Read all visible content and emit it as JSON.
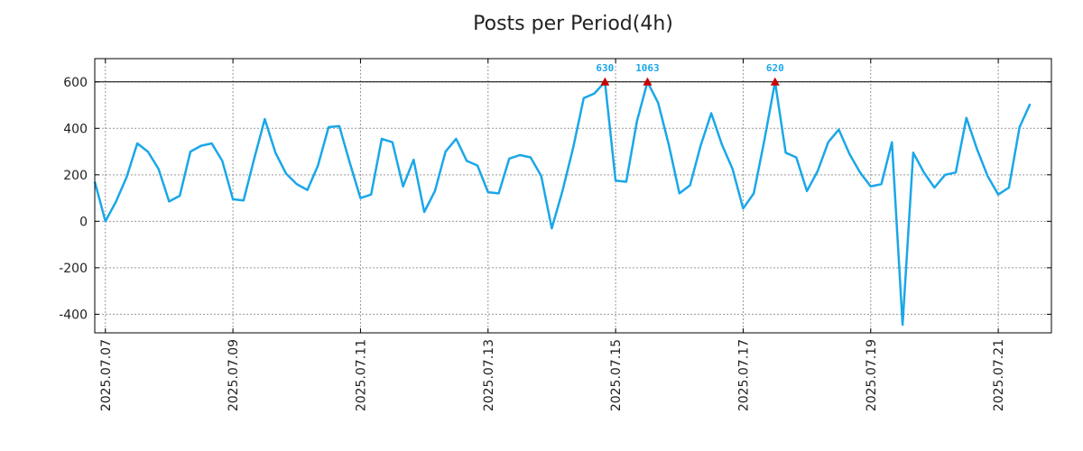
{
  "chart_data": {
    "type": "line",
    "title": "Posts per Period(4h)",
    "xlabel": "",
    "ylabel": "",
    "x_range": [
      "2025.07.06 20:00",
      "2025.07.21 20:00"
    ],
    "ylim": [
      -480,
      700
    ],
    "y_ticks": [
      600,
      400,
      200,
      0,
      -200,
      -400
    ],
    "y_tick_labels": [
      "600",
      "400",
      "200",
      "0",
      "-200",
      "-400"
    ],
    "x_ticks": [
      "2025.07.07",
      "2025.07.09",
      "2025.07.11",
      "2025.07.13",
      "2025.07.15",
      "2025.07.17",
      "2025.07.19",
      "2025.07.21"
    ],
    "grid": true,
    "threshold_line": 600,
    "colors": {
      "line": "#1aa7e8",
      "marker": "#cc0000",
      "peak_text": "#1aa7e8",
      "threshold": "#000000",
      "grid": "#999999"
    },
    "peaks": [
      {
        "x": "2025.07.14 20:00",
        "value": 600,
        "label": "630"
      },
      {
        "x": "2025.07.15 12:00",
        "value": 600,
        "label": "1063"
      },
      {
        "x": "2025.07.17 12:00",
        "value": 600,
        "label": "620"
      }
    ],
    "series": [
      {
        "values": [
          {
            "x": "2025.07.06 20:00",
            "y": 170
          },
          {
            "x": "2025.07.07 00:00",
            "y": 0
          },
          {
            "x": "2025.07.07 04:00",
            "y": 85
          },
          {
            "x": "2025.07.07 08:00",
            "y": 190
          },
          {
            "x": "2025.07.07 12:00",
            "y": 335
          },
          {
            "x": "2025.07.07 16:00",
            "y": 300
          },
          {
            "x": "2025.07.07 20:00",
            "y": 225
          },
          {
            "x": "2025.07.08 00:00",
            "y": 85
          },
          {
            "x": "2025.07.08 04:00",
            "y": 110
          },
          {
            "x": "2025.07.08 08:00",
            "y": 300
          },
          {
            "x": "2025.07.08 12:00",
            "y": 325
          },
          {
            "x": "2025.07.08 16:00",
            "y": 335
          },
          {
            "x": "2025.07.08 20:00",
            "y": 260
          },
          {
            "x": "2025.07.09 00:00",
            "y": 95
          },
          {
            "x": "2025.07.09 04:00",
            "y": 90
          },
          {
            "x": "2025.07.09 08:00",
            "y": 270
          },
          {
            "x": "2025.07.09 12:00",
            "y": 440
          },
          {
            "x": "2025.07.09 16:00",
            "y": 295
          },
          {
            "x": "2025.07.09 20:00",
            "y": 205
          },
          {
            "x": "2025.07.10 00:00",
            "y": 160
          },
          {
            "x": "2025.07.10 04:00",
            "y": 135
          },
          {
            "x": "2025.07.10 08:00",
            "y": 240
          },
          {
            "x": "2025.07.10 12:00",
            "y": 405
          },
          {
            "x": "2025.07.10 16:00",
            "y": 410
          },
          {
            "x": "2025.07.10 20:00",
            "y": 250
          },
          {
            "x": "2025.07.11 00:00",
            "y": 100
          },
          {
            "x": "2025.07.11 04:00",
            "y": 115
          },
          {
            "x": "2025.07.11 08:00",
            "y": 355
          },
          {
            "x": "2025.07.11 12:00",
            "y": 340
          },
          {
            "x": "2025.07.11 16:00",
            "y": 150
          },
          {
            "x": "2025.07.11 20:00",
            "y": 265
          },
          {
            "x": "2025.07.12 00:00",
            "y": 40
          },
          {
            "x": "2025.07.12 04:00",
            "y": 130
          },
          {
            "x": "2025.07.12 08:00",
            "y": 300
          },
          {
            "x": "2025.07.12 12:00",
            "y": 355
          },
          {
            "x": "2025.07.12 16:00",
            "y": 260
          },
          {
            "x": "2025.07.12 20:00",
            "y": 240
          },
          {
            "x": "2025.07.13 00:00",
            "y": 125
          },
          {
            "x": "2025.07.13 04:00",
            "y": 120
          },
          {
            "x": "2025.07.13 08:00",
            "y": 270
          },
          {
            "x": "2025.07.13 12:00",
            "y": 285
          },
          {
            "x": "2025.07.13 16:00",
            "y": 275
          },
          {
            "x": "2025.07.13 20:00",
            "y": 195
          },
          {
            "x": "2025.07.14 00:00",
            "y": -30
          },
          {
            "x": "2025.07.14 04:00",
            "y": 130
          },
          {
            "x": "2025.07.14 08:00",
            "y": 315
          },
          {
            "x": "2025.07.14 12:00",
            "y": 530
          },
          {
            "x": "2025.07.14 16:00",
            "y": 550
          },
          {
            "x": "2025.07.14 20:00",
            "y": 600
          },
          {
            "x": "2025.07.15 00:00",
            "y": 175
          },
          {
            "x": "2025.07.15 04:00",
            "y": 170
          },
          {
            "x": "2025.07.15 08:00",
            "y": 430
          },
          {
            "x": "2025.07.15 12:00",
            "y": 600
          },
          {
            "x": "2025.07.15 16:00",
            "y": 510
          },
          {
            "x": "2025.07.15 20:00",
            "y": 330
          },
          {
            "x": "2025.07.16 00:00",
            "y": 120
          },
          {
            "x": "2025.07.16 04:00",
            "y": 155
          },
          {
            "x": "2025.07.16 08:00",
            "y": 325
          },
          {
            "x": "2025.07.16 12:00",
            "y": 465
          },
          {
            "x": "2025.07.16 16:00",
            "y": 330
          },
          {
            "x": "2025.07.16 20:00",
            "y": 225
          },
          {
            "x": "2025.07.17 00:00",
            "y": 55
          },
          {
            "x": "2025.07.17 04:00",
            "y": 120
          },
          {
            "x": "2025.07.17 08:00",
            "y": 350
          },
          {
            "x": "2025.07.17 12:00",
            "y": 600
          },
          {
            "x": "2025.07.17 16:00",
            "y": 295
          },
          {
            "x": "2025.07.17 20:00",
            "y": 275
          },
          {
            "x": "2025.07.18 00:00",
            "y": 130
          },
          {
            "x": "2025.07.18 04:00",
            "y": 215
          },
          {
            "x": "2025.07.18 08:00",
            "y": 340
          },
          {
            "x": "2025.07.18 12:00",
            "y": 395
          },
          {
            "x": "2025.07.18 16:00",
            "y": 290
          },
          {
            "x": "2025.07.18 20:00",
            "y": 210
          },
          {
            "x": "2025.07.19 00:00",
            "y": 150
          },
          {
            "x": "2025.07.19 04:00",
            "y": 160
          },
          {
            "x": "2025.07.19 08:00",
            "y": 340
          },
          {
            "x": "2025.07.19 12:00",
            "y": -445
          },
          {
            "x": "2025.07.19 16:00",
            "y": 295
          },
          {
            "x": "2025.07.19 20:00",
            "y": 210
          },
          {
            "x": "2025.07.20 00:00",
            "y": 145
          },
          {
            "x": "2025.07.20 04:00",
            "y": 200
          },
          {
            "x": "2025.07.20 08:00",
            "y": 210
          },
          {
            "x": "2025.07.20 12:00",
            "y": 445
          },
          {
            "x": "2025.07.20 16:00",
            "y": 310
          },
          {
            "x": "2025.07.20 20:00",
            "y": 195
          },
          {
            "x": "2025.07.21 00:00",
            "y": 115
          },
          {
            "x": "2025.07.21 04:00",
            "y": 145
          },
          {
            "x": "2025.07.21 08:00",
            "y": 405
          },
          {
            "x": "2025.07.21 12:00",
            "y": 505
          }
        ]
      }
    ]
  }
}
